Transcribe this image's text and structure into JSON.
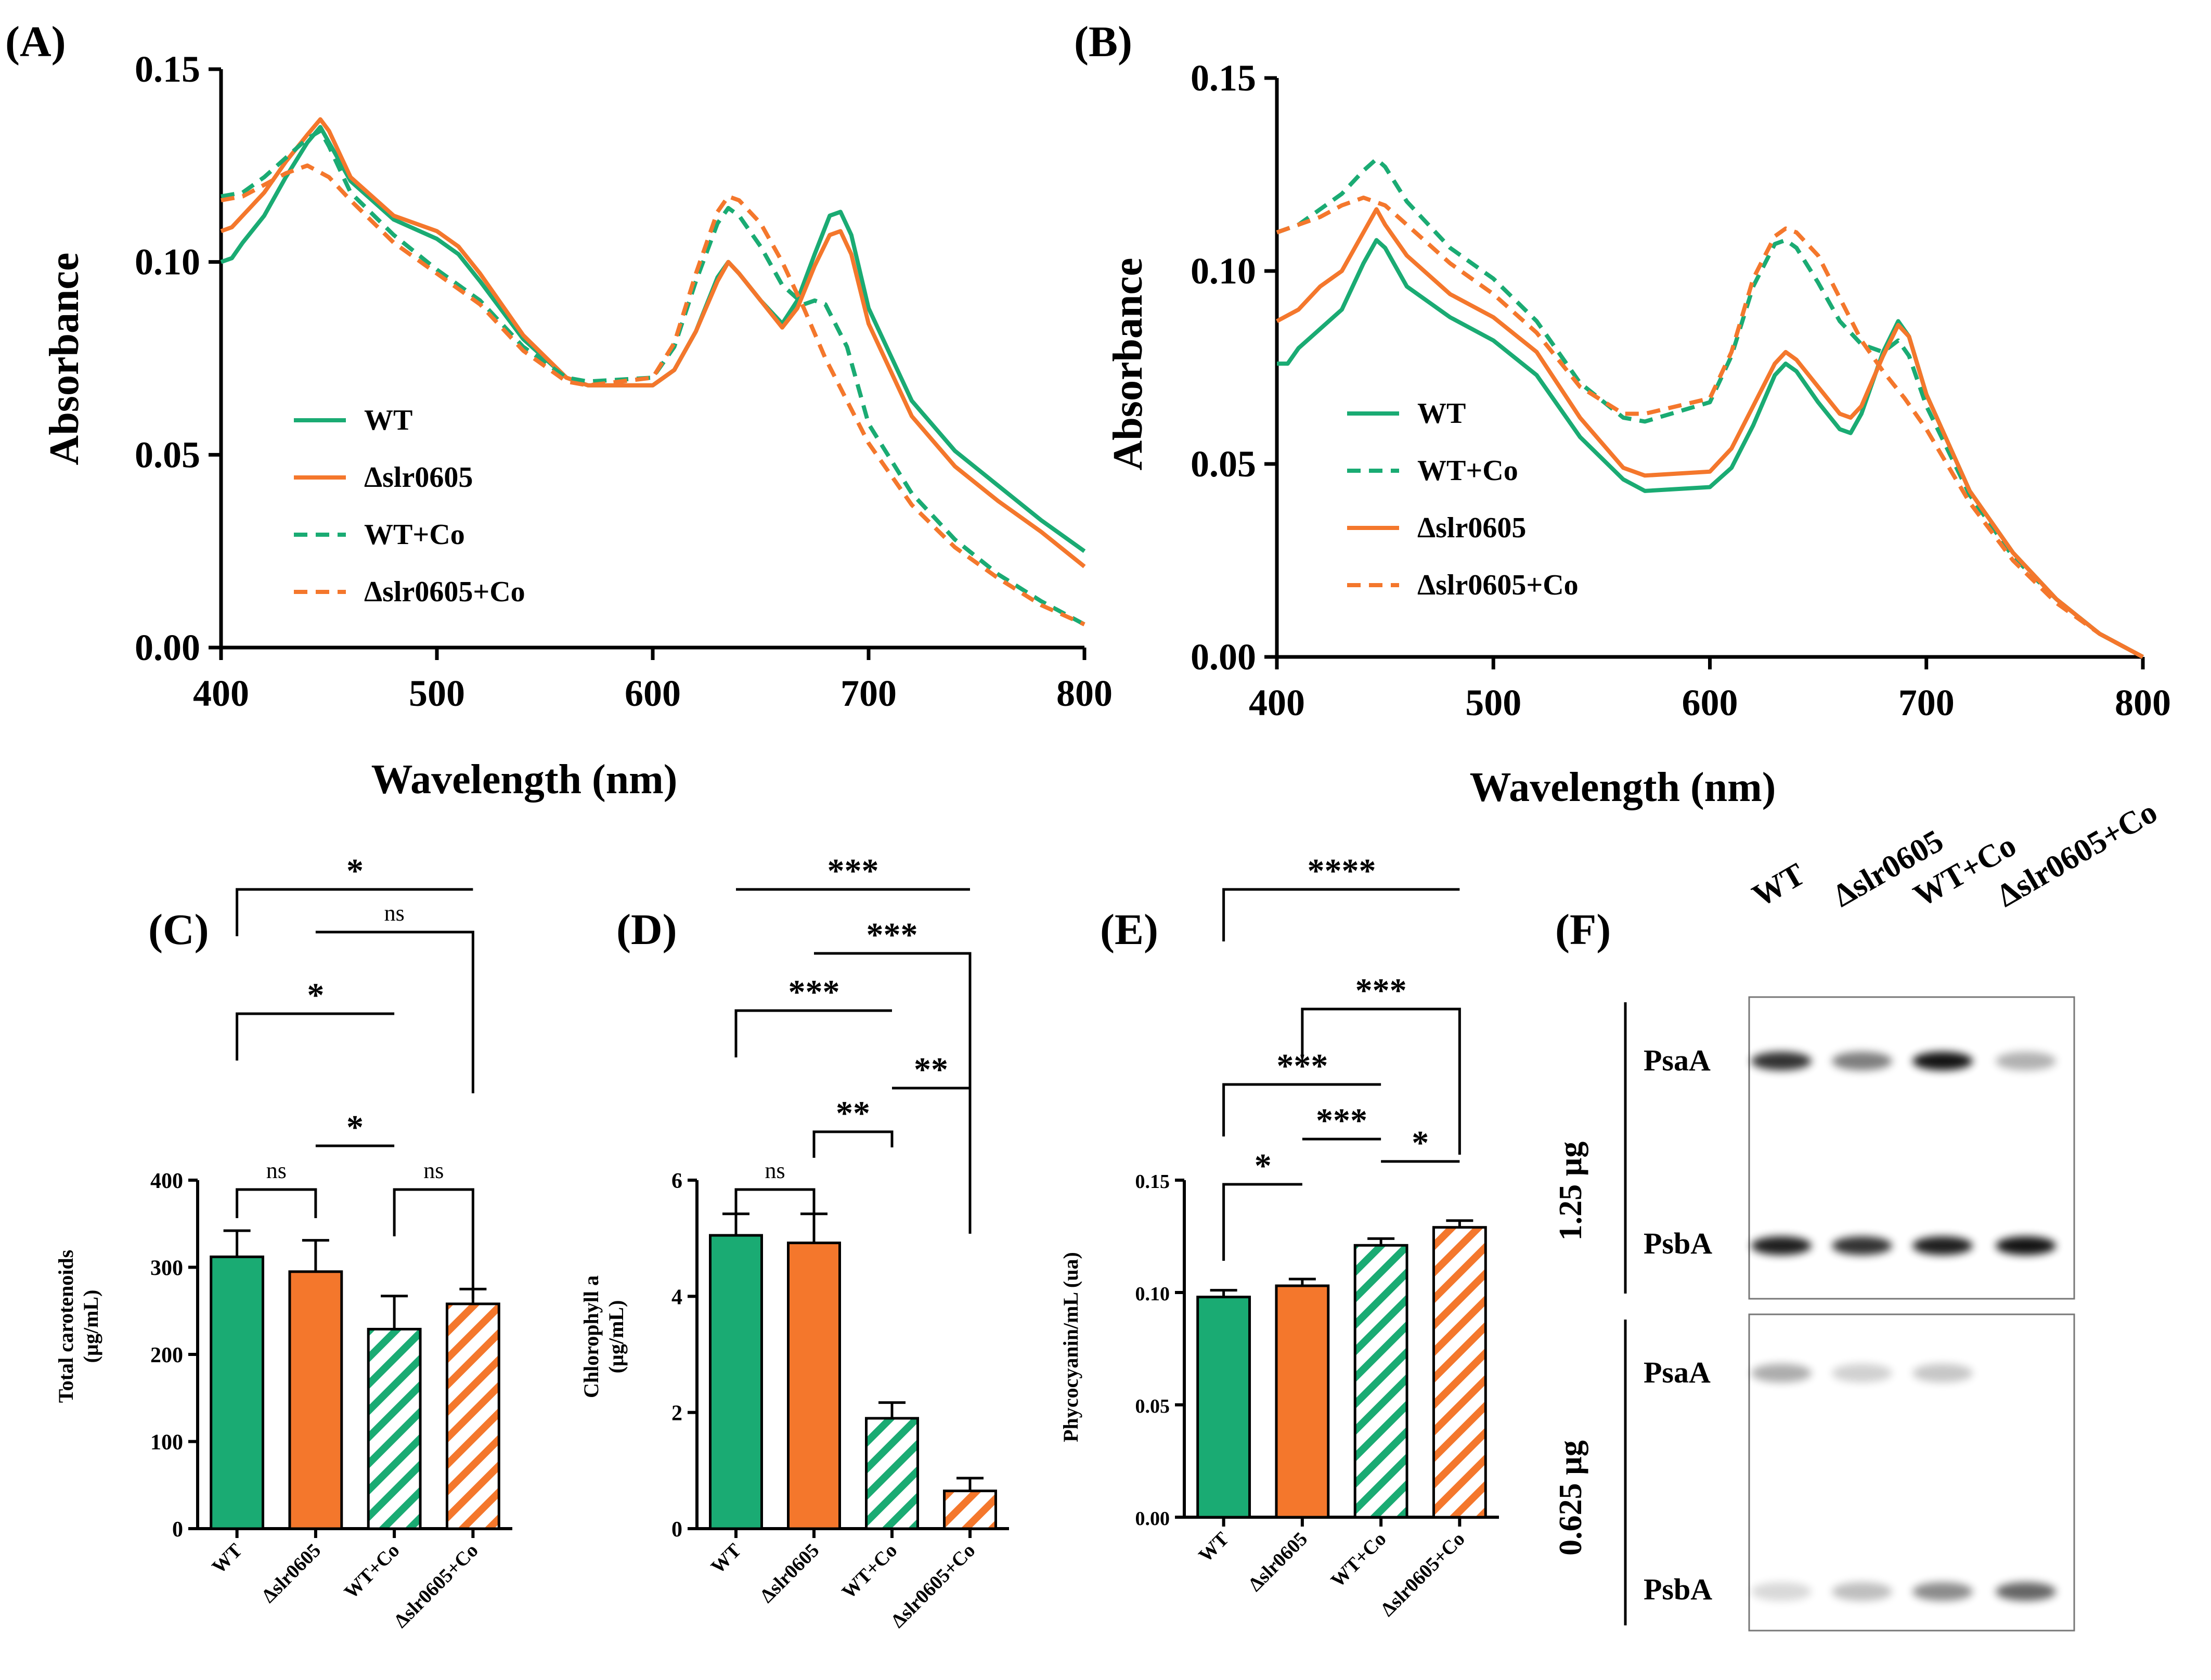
{
  "colors": {
    "wt": "#1aab73",
    "mutant": "#f4772c",
    "co_wt": "#1aab73",
    "co_mutant": "#f4772c",
    "axis": "#000000"
  },
  "icons": {
    "hatch": "diagonal-stripe-pattern"
  },
  "chart_data": [
    {
      "panel": "(A)",
      "type": "line",
      "xlabel": "Wavelength (nm)",
      "ylabel": "Absorbance",
      "xlim": [
        400,
        800
      ],
      "ylim": [
        0,
        0.15
      ],
      "xticks": [
        "400",
        "500",
        "600",
        "700",
        "800"
      ],
      "yticks": [
        "0.00",
        "0.05",
        "0.10",
        "0.15"
      ],
      "legend": "center-left",
      "series": [
        {
          "name": "WT",
          "dashed": false,
          "color": "#1aab73",
          "x": [
            400,
            405,
            410,
            420,
            430,
            440,
            446,
            450,
            460,
            480,
            500,
            510,
            520,
            540,
            560,
            570,
            600,
            610,
            620,
            630,
            635,
            640,
            650,
            660,
            667,
            675,
            682,
            687,
            692,
            700,
            720,
            740,
            760,
            780,
            800
          ],
          "y": [
            0.1,
            0.101,
            0.105,
            0.112,
            0.122,
            0.131,
            0.135,
            0.131,
            0.121,
            0.111,
            0.106,
            0.102,
            0.095,
            0.08,
            0.07,
            0.068,
            0.068,
            0.072,
            0.082,
            0.096,
            0.1,
            0.097,
            0.09,
            0.084,
            0.09,
            0.102,
            0.112,
            0.113,
            0.107,
            0.088,
            0.064,
            0.051,
            0.042,
            0.033,
            0.025
          ]
        },
        {
          "name": "Δslr0605",
          "dashed": false,
          "color": "#f4772c",
          "x": [
            400,
            405,
            410,
            420,
            430,
            440,
            446,
            450,
            460,
            480,
            500,
            510,
            520,
            540,
            560,
            570,
            600,
            610,
            620,
            630,
            635,
            640,
            650,
            660,
            667,
            675,
            682,
            687,
            692,
            700,
            720,
            740,
            760,
            780,
            800
          ],
          "y": [
            0.108,
            0.109,
            0.112,
            0.118,
            0.126,
            0.133,
            0.137,
            0.134,
            0.122,
            0.112,
            0.108,
            0.104,
            0.097,
            0.081,
            0.07,
            0.068,
            0.068,
            0.072,
            0.082,
            0.095,
            0.1,
            0.097,
            0.09,
            0.083,
            0.088,
            0.099,
            0.107,
            0.108,
            0.102,
            0.084,
            0.06,
            0.047,
            0.038,
            0.03,
            0.021
          ]
        },
        {
          "name": "WT+Co",
          "dashed": true,
          "color": "#1aab73",
          "x": [
            400,
            410,
            420,
            430,
            440,
            446,
            450,
            460,
            480,
            500,
            520,
            540,
            560,
            570,
            600,
            610,
            620,
            630,
            635,
            640,
            650,
            660,
            670,
            675,
            680,
            690,
            700,
            720,
            740,
            760,
            780,
            800
          ],
          "y": [
            0.117,
            0.118,
            0.122,
            0.127,
            0.132,
            0.134,
            0.13,
            0.118,
            0.107,
            0.098,
            0.09,
            0.078,
            0.07,
            0.069,
            0.07,
            0.078,
            0.095,
            0.11,
            0.114,
            0.112,
            0.104,
            0.094,
            0.089,
            0.09,
            0.089,
            0.078,
            0.058,
            0.04,
            0.028,
            0.019,
            0.012,
            0.006
          ]
        },
        {
          "name": "Δslr0605+Co",
          "dashed": true,
          "color": "#f4772c",
          "x": [
            400,
            410,
            420,
            430,
            440,
            450,
            460,
            480,
            500,
            520,
            540,
            560,
            570,
            600,
            610,
            620,
            630,
            635,
            640,
            650,
            660,
            670,
            680,
            690,
            700,
            720,
            740,
            760,
            780,
            800
          ],
          "y": [
            0.116,
            0.117,
            0.12,
            0.123,
            0.125,
            0.122,
            0.116,
            0.105,
            0.097,
            0.089,
            0.077,
            0.069,
            0.068,
            0.07,
            0.079,
            0.097,
            0.113,
            0.117,
            0.116,
            0.11,
            0.1,
            0.088,
            0.075,
            0.064,
            0.053,
            0.037,
            0.026,
            0.018,
            0.011,
            0.006
          ]
        }
      ]
    },
    {
      "panel": "(B)",
      "type": "line",
      "xlabel": "Wavelength (nm)",
      "ylabel": "Absorbance",
      "xlim": [
        400,
        800
      ],
      "ylim": [
        0,
        0.15
      ],
      "xticks": [
        "400",
        "500",
        "600",
        "700",
        "800"
      ],
      "yticks": [
        "0.00",
        "0.05",
        "0.10",
        "0.15"
      ],
      "legend": "center-left",
      "series": [
        {
          "name": "WT",
          "dashed": false,
          "color": "#1aab73",
          "x": [
            400,
            405,
            410,
            420,
            430,
            440,
            446,
            450,
            460,
            480,
            500,
            520,
            540,
            560,
            570,
            600,
            610,
            620,
            630,
            635,
            640,
            650,
            660,
            665,
            670,
            680,
            687,
            692,
            700,
            720,
            740,
            760,
            780,
            800
          ],
          "y": [
            0.076,
            0.076,
            0.08,
            0.085,
            0.09,
            0.102,
            0.108,
            0.106,
            0.096,
            0.088,
            0.082,
            0.073,
            0.057,
            0.046,
            0.043,
            0.044,
            0.049,
            0.06,
            0.073,
            0.076,
            0.074,
            0.066,
            0.059,
            0.058,
            0.063,
            0.079,
            0.087,
            0.083,
            0.068,
            0.043,
            0.027,
            0.015,
            0.006,
            0.0
          ]
        },
        {
          "name": "WT+Co",
          "dashed": true,
          "color": "#1aab73",
          "x": [
            400,
            410,
            420,
            430,
            440,
            446,
            450,
            460,
            480,
            500,
            520,
            540,
            560,
            570,
            600,
            610,
            620,
            630,
            635,
            640,
            650,
            660,
            670,
            680,
            687,
            692,
            700,
            720,
            740,
            760,
            780,
            800
          ],
          "y": [
            0.11,
            0.112,
            0.116,
            0.12,
            0.126,
            0.129,
            0.127,
            0.118,
            0.106,
            0.098,
            0.087,
            0.071,
            0.062,
            0.061,
            0.066,
            0.078,
            0.096,
            0.107,
            0.108,
            0.106,
            0.097,
            0.087,
            0.081,
            0.079,
            0.082,
            0.078,
            0.065,
            0.042,
            0.026,
            0.015,
            0.006,
            0.0
          ]
        },
        {
          "name": "Δslr0605",
          "dashed": false,
          "color": "#f4772c",
          "x": [
            400,
            410,
            420,
            430,
            440,
            446,
            450,
            460,
            480,
            500,
            520,
            540,
            560,
            570,
            600,
            610,
            620,
            630,
            635,
            640,
            650,
            660,
            665,
            670,
            680,
            687,
            692,
            700,
            720,
            740,
            760,
            780,
            800
          ],
          "y": [
            0.087,
            0.09,
            0.096,
            0.1,
            0.11,
            0.116,
            0.112,
            0.104,
            0.094,
            0.088,
            0.079,
            0.062,
            0.049,
            0.047,
            0.048,
            0.054,
            0.065,
            0.076,
            0.079,
            0.077,
            0.07,
            0.063,
            0.062,
            0.065,
            0.078,
            0.086,
            0.083,
            0.068,
            0.043,
            0.027,
            0.015,
            0.006,
            0.0
          ]
        },
        {
          "name": "Δslr0605+Co",
          "dashed": true,
          "color": "#f4772c",
          "x": [
            400,
            410,
            420,
            430,
            440,
            450,
            460,
            480,
            500,
            520,
            540,
            560,
            570,
            600,
            610,
            620,
            630,
            635,
            640,
            650,
            660,
            670,
            680,
            690,
            700,
            720,
            740,
            760,
            780,
            800
          ],
          "y": [
            0.11,
            0.112,
            0.114,
            0.117,
            0.119,
            0.117,
            0.112,
            0.102,
            0.094,
            0.084,
            0.07,
            0.063,
            0.063,
            0.067,
            0.079,
            0.098,
            0.109,
            0.111,
            0.11,
            0.104,
            0.093,
            0.082,
            0.074,
            0.067,
            0.059,
            0.04,
            0.025,
            0.014,
            0.006,
            0.0
          ]
        }
      ]
    },
    {
      "panel": "(C)",
      "type": "bar",
      "ylabel": "Total carotenoids (µg/mL)",
      "ylabel_lines": [
        "Total carotenoids",
        "(µg/mL)"
      ],
      "ylim": [
        0,
        400
      ],
      "yticks": [
        "0",
        "100",
        "200",
        "300",
        "400"
      ],
      "ytick_values": [
        0,
        100,
        200,
        300,
        400
      ],
      "categories": [
        "WT",
        "Δslr0605",
        "WT+Co",
        "Δslr0605+Co"
      ],
      "values": [
        312,
        295,
        229,
        258
      ],
      "errors": [
        30,
        36,
        38,
        17
      ],
      "hatched": [
        false,
        false,
        true,
        true
      ],
      "significance": [
        {
          "a": 0,
          "b": 1,
          "label": "ns"
        },
        {
          "a": 1,
          "b": 2,
          "label": "*"
        },
        {
          "a": 2,
          "b": 3,
          "label": "ns"
        },
        {
          "a": 0,
          "b": 2,
          "label": "*"
        },
        {
          "a": 1,
          "b": 3,
          "label": "ns"
        },
        {
          "a": 0,
          "b": 3,
          "label": "*"
        }
      ]
    },
    {
      "panel": "(D)",
      "type": "bar",
      "ylabel": "Chlorophyll a (µg/mL)",
      "ylabel_lines": [
        "Chlorophyll a",
        "(µg/mL)"
      ],
      "ylim": [
        0,
        6
      ],
      "yticks": [
        "0",
        "2",
        "4",
        "6"
      ],
      "ytick_values": [
        0,
        2,
        4,
        6
      ],
      "categories": [
        "WT",
        "Δslr0605",
        "WT+Co",
        "Δslr0605+Co"
      ],
      "values": [
        5.05,
        4.92,
        1.9,
        0.65
      ],
      "errors": [
        0.37,
        0.5,
        0.27,
        0.22
      ],
      "hatched": [
        false,
        false,
        true,
        true
      ],
      "significance": [
        {
          "a": 0,
          "b": 1,
          "label": "ns"
        },
        {
          "a": 1,
          "b": 2,
          "label": "**"
        },
        {
          "a": 2,
          "b": 3,
          "label": "**"
        },
        {
          "a": 0,
          "b": 2,
          "label": "***"
        },
        {
          "a": 1,
          "b": 3,
          "label": "***"
        },
        {
          "a": 0,
          "b": 3,
          "label": "***"
        }
      ]
    },
    {
      "panel": "(E)",
      "type": "bar",
      "ylabel": "Phycocyanin/mL (ua)",
      "ylabel_lines": [
        "Phycocyanin/mL (ua)"
      ],
      "ylim": [
        0,
        0.15
      ],
      "yticks": [
        "0.00",
        "0.05",
        "0.10",
        "0.15"
      ],
      "ytick_values": [
        0,
        0.05,
        0.1,
        0.15
      ],
      "categories": [
        "WT",
        "Δslr0605",
        "WT+Co",
        "Δslr0605+Co"
      ],
      "values": [
        0.098,
        0.103,
        0.121,
        0.129
      ],
      "errors": [
        0.003,
        0.003,
        0.003,
        0.003
      ],
      "hatched": [
        false,
        false,
        true,
        true
      ],
      "significance": [
        {
          "a": 0,
          "b": 1,
          "label": "*"
        },
        {
          "a": 1,
          "b": 2,
          "label": "***"
        },
        {
          "a": 2,
          "b": 3,
          "label": "*"
        },
        {
          "a": 0,
          "b": 2,
          "label": "***"
        },
        {
          "a": 1,
          "b": 3,
          "label": "***"
        },
        {
          "a": 0,
          "b": 3,
          "label": "****"
        }
      ]
    }
  ],
  "blot": {
    "panel": "(F)",
    "lanes": [
      "WT",
      "Δslr0605",
      "WT+Co",
      "Δslr0605+Co"
    ],
    "groups": [
      {
        "amount": "1.25 µg",
        "bands": [
          {
            "protein": "PsaA",
            "intensity": [
              0.8,
              0.5,
              0.92,
              0.3
            ]
          },
          {
            "protein": "PsbA",
            "intensity": [
              0.88,
              0.8,
              0.88,
              0.92
            ]
          }
        ]
      },
      {
        "amount": "0.625 µg",
        "bands": [
          {
            "protein": "PsaA",
            "intensity": [
              0.32,
              0.18,
              0.22,
              0.0
            ]
          },
          {
            "protein": "PsbA",
            "intensity": [
              0.15,
              0.25,
              0.45,
              0.6
            ]
          }
        ]
      }
    ]
  }
}
